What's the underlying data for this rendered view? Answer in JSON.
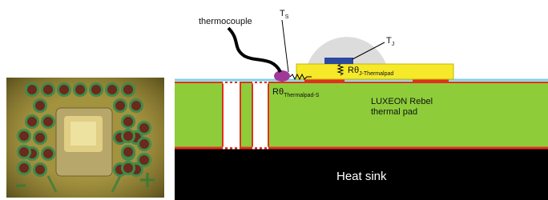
{
  "photo": {
    "description": null
  },
  "diagram": {
    "thermocouple": "thermocouple",
    "ts": {
      "main": "T",
      "sub": "S"
    },
    "tj": {
      "main": "T",
      "sub": "J"
    },
    "r_j_pad": {
      "main": "Rθ",
      "sub": "J-Thermalpad"
    },
    "r_pad_s": {
      "main": "Rθ",
      "sub": "Thermalpad-S"
    },
    "pad_label": [
      "LUXEON Rebel",
      "thermal pad"
    ],
    "heat_sink": "Heat sink"
  }
}
